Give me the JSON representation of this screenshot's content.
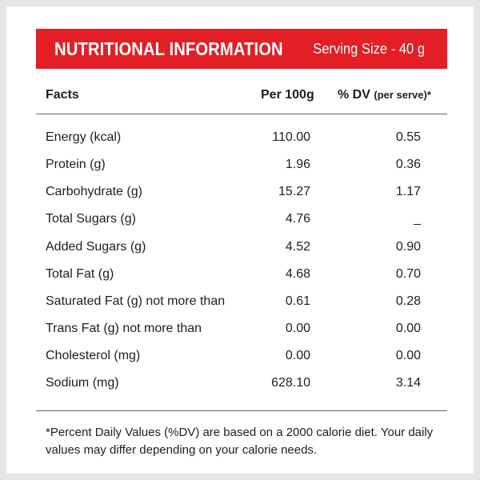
{
  "banner": {
    "title": "NUTRITIONAL INFORMATION",
    "serving": "Serving Size - 40 g"
  },
  "headers": {
    "facts": "Facts",
    "per": "Per 100g",
    "dv_main": "% DV",
    "dv_note": "(per serve)*"
  },
  "rows": [
    {
      "label": "Energy (kcal)",
      "per": "110.00",
      "dv": "0.55"
    },
    {
      "label": "Protein (g)",
      "per": "1.96",
      "dv": "0.36"
    },
    {
      "label": "Carbohydrate (g)",
      "per": "15.27",
      "dv": "1.17"
    },
    {
      "label": "Total Sugars (g)",
      "per": "4.76",
      "dv": "_"
    },
    {
      "label": "Added Sugars (g)",
      "per": "4.52",
      "dv": "0.90"
    },
    {
      "label": "Total Fat (g)",
      "per": "4.68",
      "dv": "0.70"
    },
    {
      "label": "Saturated Fat (g) not more than",
      "per": "0.61",
      "dv": "0.28"
    },
    {
      "label": "Trans Fat (g) not more than",
      "per": "0.00",
      "dv": "0.00"
    },
    {
      "label": "Cholesterol (mg)",
      "per": "0.00",
      "dv": "0.00"
    },
    {
      "label": "Sodium (mg)",
      "per": "628.10",
      "dv": "3.14"
    }
  ],
  "footnote": "*Percent Daily Values (%DV) are based on a 2000 calorie diet. Your daily values may differ depending on your calorie needs.",
  "colors": {
    "banner": "#e31e25",
    "text": "#1e1e1e",
    "rule": "#666666"
  }
}
